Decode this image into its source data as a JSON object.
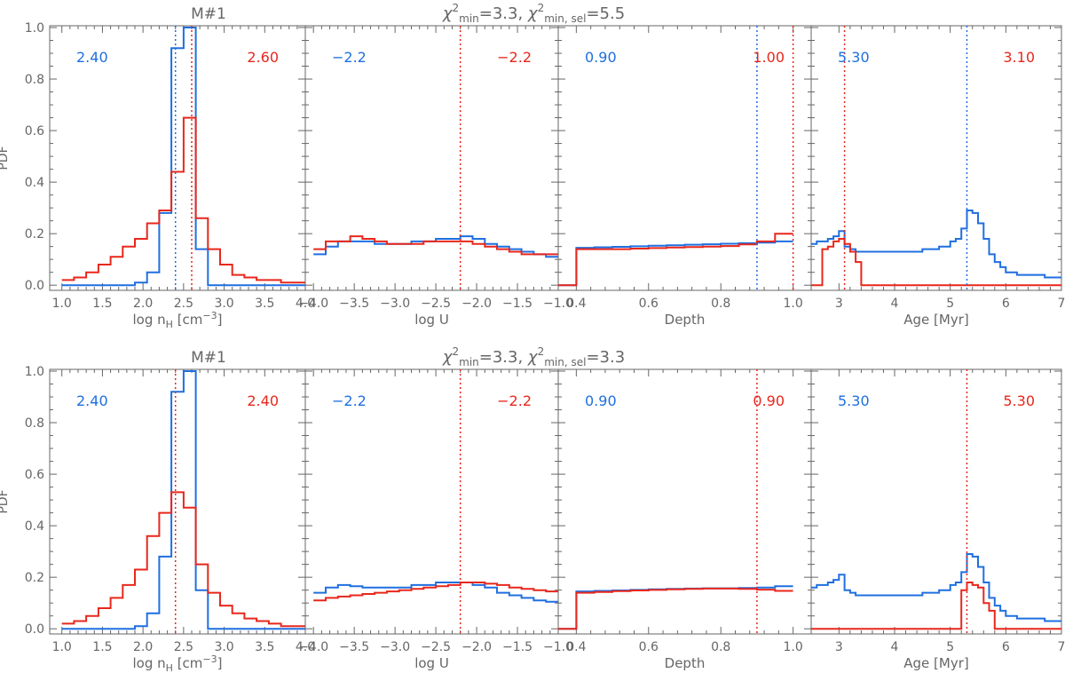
{
  "colors": {
    "blue": "#1f6fe0",
    "red": "#e8271c",
    "axis": "#666666",
    "text": "#666666"
  },
  "chart_data": {
    "type": "line",
    "style": "step histograms, two series per panel, dotted vertical markers",
    "ylabel": "PDF",
    "ylim": [
      0,
      1.0
    ],
    "yticks": [
      "0.0",
      "0.2",
      "0.4",
      "0.6",
      "0.8",
      "1.0"
    ],
    "panels": [
      {
        "row": 0,
        "col": 0,
        "title": "M#1",
        "xlabel": "log n_H [cm^-3]",
        "xlim": [
          0.85,
          4.0
        ],
        "xticks": [
          "1.0",
          "1.5",
          "2.0",
          "2.5",
          "3.0",
          "3.5",
          "4.0"
        ],
        "edges": [
          1.0,
          1.15,
          1.3,
          1.45,
          1.6,
          1.75,
          1.9,
          2.05,
          2.2,
          2.35,
          2.5,
          2.65,
          2.8,
          2.95,
          3.1,
          3.25,
          3.4,
          3.55,
          3.7,
          3.85,
          4.0
        ],
        "series": [
          {
            "color": "blue",
            "values": [
              0,
              0,
              0,
              0,
              0,
              0,
              0.01,
              0.05,
              0.28,
              0.92,
              1.0,
              0.14,
              0,
              0,
              0,
              0,
              0,
              0,
              0,
              0
            ]
          },
          {
            "color": "red",
            "values": [
              0.02,
              0.03,
              0.05,
              0.08,
              0.11,
              0.15,
              0.18,
              0.24,
              0.29,
              0.44,
              0.65,
              0.26,
              0.14,
              0.08,
              0.04,
              0.03,
              0.02,
              0.02,
              0.01,
              0.01
            ]
          }
        ],
        "markers": [
          {
            "color": "blue",
            "x": 2.4
          },
          {
            "color": "red",
            "x": 2.6
          }
        ],
        "labels": {
          "blue": "2.40",
          "red": "2.60"
        }
      },
      {
        "row": 0,
        "col": 1,
        "title": "χ²min=3.3,  χ²min, sel=5.5",
        "xlabel": "log U",
        "xlim": [
          -4.1,
          -1.0
        ],
        "xticks": [
          "−4.0",
          "−3.5",
          "−3.0",
          "−2.5",
          "−2.0",
          "−1.5",
          "−1.0"
        ],
        "edges": [
          -4.0,
          -3.85,
          -3.7,
          -3.55,
          -3.4,
          -3.25,
          -3.1,
          -2.95,
          -2.8,
          -2.65,
          -2.5,
          -2.35,
          -2.2,
          -2.05,
          -1.9,
          -1.75,
          -1.6,
          -1.45,
          -1.3,
          -1.15,
          -1.0
        ],
        "series": [
          {
            "color": "blue",
            "values": [
              0.12,
              0.15,
              0.17,
              0.17,
              0.17,
              0.16,
              0.16,
              0.16,
              0.17,
              0.17,
              0.18,
              0.18,
              0.19,
              0.18,
              0.16,
              0.15,
              0.14,
              0.13,
              0.12,
              0.11
            ]
          },
          {
            "color": "red",
            "values": [
              0.14,
              0.17,
              0.17,
              0.19,
              0.18,
              0.17,
              0.16,
              0.16,
              0.16,
              0.17,
              0.17,
              0.17,
              0.17,
              0.16,
              0.15,
              0.14,
              0.13,
              0.12,
              0.12,
              0.12
            ]
          }
        ],
        "markers": [
          {
            "color": "red",
            "x": -2.2
          }
        ],
        "labels": {
          "blue": "−2.2",
          "red": "−2.2"
        }
      },
      {
        "row": 0,
        "col": 2,
        "title": "",
        "xlabel": "Depth",
        "xlim": [
          0.35,
          1.05
        ],
        "xticks": [
          "0.4",
          "0.6",
          "0.8",
          "1.0"
        ],
        "edges": [
          0.35,
          0.4,
          0.45,
          0.5,
          0.55,
          0.6,
          0.65,
          0.7,
          0.75,
          0.8,
          0.85,
          0.9,
          0.95,
          1.0
        ],
        "series": [
          {
            "color": "blue",
            "values": [
              0,
              0.145,
              0.147,
              0.149,
              0.151,
              0.153,
              0.155,
              0.157,
              0.159,
              0.161,
              0.163,
              0.165,
              0.17
            ]
          },
          {
            "color": "red",
            "values": [
              0,
              0.14,
              0.14,
              0.14,
              0.142,
              0.144,
              0.146,
              0.148,
              0.15,
              0.152,
              0.158,
              0.17,
              0.2
            ]
          }
        ],
        "markers": [
          {
            "color": "blue",
            "x": 0.9
          },
          {
            "color": "red",
            "x": 1.0
          }
        ],
        "labels": {
          "blue": "0.90",
          "red": "1.00"
        }
      },
      {
        "row": 0,
        "col": 3,
        "title": "",
        "xlabel": "Age [Myr]",
        "xlim": [
          2.5,
          7.0
        ],
        "xticks": [
          "3",
          "4",
          "5",
          "6",
          "7"
        ],
        "edges": [
          2.5,
          2.6,
          2.7,
          2.8,
          2.9,
          3.0,
          3.1,
          3.2,
          3.3,
          3.4,
          3.5,
          4.0,
          4.5,
          4.8,
          5.0,
          5.1,
          5.2,
          5.3,
          5.4,
          5.5,
          5.6,
          5.7,
          5.8,
          5.9,
          6.0,
          6.2,
          6.4,
          6.7,
          7.0
        ],
        "series": [
          {
            "color": "blue",
            "values": [
              0.16,
              0.17,
              0.17,
              0.18,
              0.19,
              0.21,
              0.15,
              0.14,
              0.13,
              0.13,
              0.13,
              0.13,
              0.14,
              0.15,
              0.17,
              0.18,
              0.22,
              0.29,
              0.28,
              0.24,
              0.18,
              0.12,
              0.09,
              0.07,
              0.05,
              0.04,
              0.04,
              0.03
            ]
          },
          {
            "color": "red",
            "values": [
              0,
              0,
              0.14,
              0.15,
              0.17,
              0.18,
              0.16,
              0.13,
              0.09,
              0,
              0,
              0,
              0,
              0,
              0,
              0,
              0,
              0,
              0,
              0,
              0,
              0,
              0,
              0,
              0,
              0,
              0,
              0
            ]
          }
        ],
        "markers": [
          {
            "color": "blue",
            "x": 5.3
          },
          {
            "color": "red",
            "x": 3.1
          }
        ],
        "labels": {
          "blue": "5.30",
          "red": "3.10"
        }
      },
      {
        "row": 1,
        "col": 0,
        "title": "M#1",
        "xlabel": "log n_H [cm^-3]",
        "xlim": [
          0.85,
          4.0
        ],
        "xticks": [
          "1.0",
          "1.5",
          "2.0",
          "2.5",
          "3.0",
          "3.5",
          "4.0"
        ],
        "edges": [
          1.0,
          1.15,
          1.3,
          1.45,
          1.6,
          1.75,
          1.9,
          2.05,
          2.2,
          2.35,
          2.5,
          2.65,
          2.8,
          2.95,
          3.1,
          3.25,
          3.4,
          3.55,
          3.7,
          3.85,
          4.0
        ],
        "series": [
          {
            "color": "blue",
            "values": [
              0,
              0,
              0,
              0,
              0,
              0,
              0.01,
              0.06,
              0.28,
              0.92,
              1.0,
              0.15,
              0,
              0,
              0,
              0,
              0,
              0,
              0,
              0
            ]
          },
          {
            "color": "red",
            "values": [
              0.02,
              0.03,
              0.05,
              0.08,
              0.12,
              0.17,
              0.23,
              0.36,
              0.45,
              0.53,
              0.47,
              0.25,
              0.14,
              0.09,
              0.06,
              0.04,
              0.03,
              0.02,
              0.01,
              0.01
            ]
          }
        ],
        "markers": [
          {
            "color": "red",
            "x": 2.4
          }
        ],
        "labels": {
          "blue": "2.40",
          "red": "2.40"
        }
      },
      {
        "row": 1,
        "col": 1,
        "title": "χ²min=3.3,  χ²min, sel=3.3",
        "xlabel": "log U",
        "xlim": [
          -4.1,
          -1.0
        ],
        "xticks": [
          "−4.0",
          "−3.5",
          "−3.0",
          "−2.5",
          "−2.0",
          "−1.5",
          "−1.0"
        ],
        "edges": [
          -4.0,
          -3.85,
          -3.7,
          -3.55,
          -3.4,
          -3.25,
          -3.1,
          -2.95,
          -2.8,
          -2.65,
          -2.5,
          -2.35,
          -2.2,
          -2.05,
          -1.9,
          -1.75,
          -1.6,
          -1.45,
          -1.3,
          -1.15,
          -1.0
        ],
        "series": [
          {
            "color": "blue",
            "values": [
              0.14,
              0.16,
              0.17,
              0.165,
              0.16,
              0.16,
              0.16,
              0.16,
              0.17,
              0.17,
              0.18,
              0.18,
              0.18,
              0.17,
              0.16,
              0.14,
              0.13,
              0.12,
              0.11,
              0.105
            ]
          },
          {
            "color": "red",
            "values": [
              0.11,
              0.12,
              0.125,
              0.13,
              0.135,
              0.14,
              0.145,
              0.15,
              0.155,
              0.16,
              0.165,
              0.17,
              0.18,
              0.18,
              0.175,
              0.17,
              0.16,
              0.155,
              0.15,
              0.145
            ]
          }
        ],
        "markers": [
          {
            "color": "red",
            "x": -2.2
          }
        ],
        "labels": {
          "blue": "−2.2",
          "red": "−2.2"
        }
      },
      {
        "row": 1,
        "col": 2,
        "title": "",
        "xlabel": "Depth",
        "xlim": [
          0.35,
          1.05
        ],
        "xticks": [
          "0.4",
          "0.6",
          "0.8",
          "1.0"
        ],
        "edges": [
          0.35,
          0.4,
          0.45,
          0.5,
          0.55,
          0.6,
          0.65,
          0.7,
          0.75,
          0.8,
          0.85,
          0.9,
          0.95,
          1.0
        ],
        "series": [
          {
            "color": "blue",
            "values": [
              0,
              0.145,
              0.147,
              0.149,
              0.151,
              0.153,
              0.155,
              0.156,
              0.157,
              0.157,
              0.158,
              0.16,
              0.165
            ]
          },
          {
            "color": "red",
            "values": [
              0,
              0.14,
              0.143,
              0.146,
              0.149,
              0.151,
              0.153,
              0.155,
              0.156,
              0.156,
              0.155,
              0.152,
              0.147
            ]
          }
        ],
        "markers": [
          {
            "color": "red",
            "x": 0.9
          }
        ],
        "labels": {
          "blue": "0.90",
          "red": "0.90"
        }
      },
      {
        "row": 1,
        "col": 3,
        "title": "",
        "xlabel": "Age [Myr]",
        "xlim": [
          2.5,
          7.0
        ],
        "xticks": [
          "3",
          "4",
          "5",
          "6",
          "7"
        ],
        "edges": [
          2.5,
          2.6,
          2.7,
          2.8,
          2.9,
          3.0,
          3.1,
          3.2,
          3.3,
          3.4,
          3.5,
          4.0,
          4.5,
          4.8,
          5.0,
          5.1,
          5.2,
          5.3,
          5.4,
          5.5,
          5.6,
          5.7,
          5.8,
          5.9,
          6.0,
          6.2,
          6.4,
          6.7,
          7.0
        ],
        "series": [
          {
            "color": "blue",
            "values": [
              0.16,
              0.17,
              0.17,
              0.18,
              0.19,
              0.21,
              0.15,
              0.14,
              0.13,
              0.13,
              0.13,
              0.13,
              0.14,
              0.15,
              0.17,
              0.18,
              0.22,
              0.29,
              0.28,
              0.24,
              0.18,
              0.12,
              0.09,
              0.07,
              0.05,
              0.04,
              0.04,
              0.03
            ]
          },
          {
            "color": "red",
            "values": [
              0,
              0,
              0,
              0,
              0,
              0,
              0,
              0,
              0,
              0,
              0,
              0,
              0,
              0,
              0,
              0,
              0.15,
              0.18,
              0.17,
              0.16,
              0.1,
              0.07,
              0,
              0,
              0,
              0,
              0,
              0
            ]
          }
        ],
        "markers": [
          {
            "color": "red",
            "x": 5.3
          }
        ],
        "labels": {
          "blue": "5.30",
          "red": "5.30"
        }
      }
    ]
  }
}
